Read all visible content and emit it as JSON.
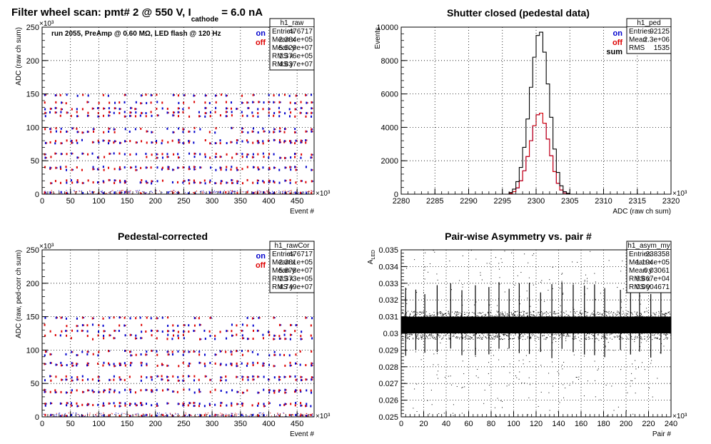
{
  "chart_data": [
    {
      "type": "scatter",
      "title": "Filter wheel scan: pmt#   2 @   550 V, I",
      "title_sub": "cathode",
      "title_tail": " = 6.0 nA",
      "annotation": "run 2055, PreAmp @ 0.60 MΩ, LED flash @  120 Hz",
      "xlabel": "Event #",
      "ylabel": "ADC (raw ch sum)",
      "x_exponent": "×10³",
      "y_exponent": "×10³",
      "xlim": [
        0,
        480
      ],
      "ylim": [
        0,
        250
      ],
      "xticks": [
        "0",
        "50",
        "100",
        "150",
        "200",
        "250",
        "300",
        "350",
        "400",
        "450"
      ],
      "yticks": [
        "0",
        "50",
        "100",
        "150",
        "200",
        "250"
      ],
      "grid": true,
      "legend": [
        {
          "name": "on",
          "color": "#0000cc"
        },
        {
          "name": "off",
          "color": "#dd0000"
        }
      ],
      "level_bands": [
        2,
        17,
        20,
        37,
        40,
        55,
        60,
        77,
        80,
        93,
        98,
        117,
        122,
        128,
        137,
        148
      ],
      "stats": {
        "name": "h1_raw",
        "rows": [
          [
            "Entries",
            "476717"
          ],
          [
            "Mean x",
            "2.384e+05"
          ],
          [
            "Mean y",
            "5.529e+07"
          ],
          [
            "RMS x",
            "1.376e+05"
          ],
          [
            "RMS y",
            "4.837e+07"
          ]
        ]
      }
    },
    {
      "type": "line",
      "title": "Shutter closed (pedestal data)",
      "xlabel": "ADC (raw ch sum)",
      "ylabel": "Events",
      "x_exponent": "×10³",
      "xlim": [
        2280,
        2320
      ],
      "ylim": [
        0,
        10000
      ],
      "xticks": [
        "2280",
        "2285",
        "2290",
        "2295",
        "2300",
        "2305",
        "2310",
        "2315",
        "2320"
      ],
      "yticks": [
        "0",
        "2000",
        "4000",
        "6000",
        "8000",
        "10000"
      ],
      "grid": true,
      "x": [
        2296.0,
        2296.5,
        2297.0,
        2297.5,
        2298.0,
        2298.5,
        2299.0,
        2299.5,
        2300.0,
        2300.5,
        2301.0,
        2301.5,
        2302.0,
        2302.5,
        2303.0,
        2303.5,
        2304.0,
        2304.5
      ],
      "series": [
        {
          "name": "sum",
          "color": "#000000",
          "values": [
            100,
            300,
            750,
            1600,
            2800,
            4500,
            6400,
            8200,
            9500,
            9700,
            8500,
            6600,
            4600,
            2700,
            1300,
            500,
            150,
            50
          ]
        },
        {
          "name": "off",
          "color": "#dd0000",
          "values": [
            50,
            150,
            380,
            800,
            1400,
            2250,
            3200,
            4100,
            4750,
            4850,
            4250,
            3300,
            2300,
            1350,
            650,
            250,
            75,
            25
          ]
        },
        {
          "name": "on",
          "color": "#0000cc",
          "values": [
            50,
            150,
            370,
            800,
            1400,
            2250,
            3200,
            4100,
            4750,
            4850,
            4250,
            3300,
            2300,
            1350,
            650,
            250,
            75,
            25
          ]
        }
      ],
      "legend": [
        {
          "name": "on",
          "color": "#0000cc"
        },
        {
          "name": "off",
          "color": "#dd0000"
        },
        {
          "name": "sum",
          "color": "#000000"
        }
      ],
      "stats": {
        "name": "h1_ped",
        "rows": [
          [
            "Entries",
            "92125"
          ],
          [
            "Mean",
            "2.3e+06"
          ],
          [
            "RMS",
            "1535"
          ]
        ]
      }
    },
    {
      "type": "scatter",
      "title": "Pedestal-corrected",
      "xlabel": "Event #",
      "ylabel": "ADC (raw, ped-corr ch sum)",
      "x_exponent": "×10³",
      "y_exponent": "×10³",
      "xlim": [
        0,
        480
      ],
      "ylim": [
        0,
        250
      ],
      "xticks": [
        "0",
        "50",
        "100",
        "150",
        "200",
        "250",
        "300",
        "350",
        "400",
        "450"
      ],
      "yticks": [
        "0",
        "50",
        "100",
        "150",
        "200",
        "250"
      ],
      "grid": true,
      "legend": [
        {
          "name": "on",
          "color": "#0000cc"
        },
        {
          "name": "off",
          "color": "#dd0000"
        }
      ],
      "level_bands": [
        2,
        17,
        20,
        37,
        40,
        55,
        60,
        77,
        80,
        93,
        98,
        117,
        122,
        128,
        137,
        148
      ],
      "stats": {
        "name": "h1_rawCor",
        "rows": [
          [
            "Entries",
            "476717"
          ],
          [
            "Mean x",
            "2.381e+05"
          ],
          [
            "Mean y",
            "5.878e+07"
          ],
          [
            "RMS x",
            "1.373e+05"
          ],
          [
            "RMS y",
            "4.749e+07"
          ]
        ]
      }
    },
    {
      "type": "scatter",
      "title": "Pair-wise Asymmetry vs. pair #",
      "xlabel": "Pair #",
      "ylabel": "A",
      "ylabel_sub": "LED",
      "x_exponent": "×10³",
      "xlim": [
        0,
        240
      ],
      "ylim": [
        0.025,
        0.035
      ],
      "xticks": [
        "0",
        "20",
        "40",
        "60",
        "80",
        "100",
        "120",
        "140",
        "160",
        "180",
        "200",
        "220",
        "240"
      ],
      "yticks": [
        "0.025",
        "0.026",
        "0.027",
        "0.028",
        "0.029",
        "0.03",
        "0.031",
        "0.032",
        "0.033",
        "0.034",
        "0.035"
      ],
      "grid": true,
      "band_center": 0.0305,
      "band_halfwidth": 0.0005,
      "spike_x": [
        4,
        13,
        21,
        32,
        44,
        54,
        66,
        78,
        87,
        96,
        105,
        114,
        124,
        134,
        143,
        153,
        163,
        172,
        181,
        195,
        204,
        212,
        222,
        231
      ],
      "stats": {
        "name": "h1_asym_my",
        "rows": [
          [
            "Entries",
            "238358"
          ],
          [
            "Mean x",
            "1.194e+05"
          ],
          [
            "Mean y",
            "0.03061"
          ],
          [
            "RMS x",
            "6.867e+04"
          ],
          [
            "RMS y",
            "0.0004671"
          ]
        ]
      }
    }
  ]
}
